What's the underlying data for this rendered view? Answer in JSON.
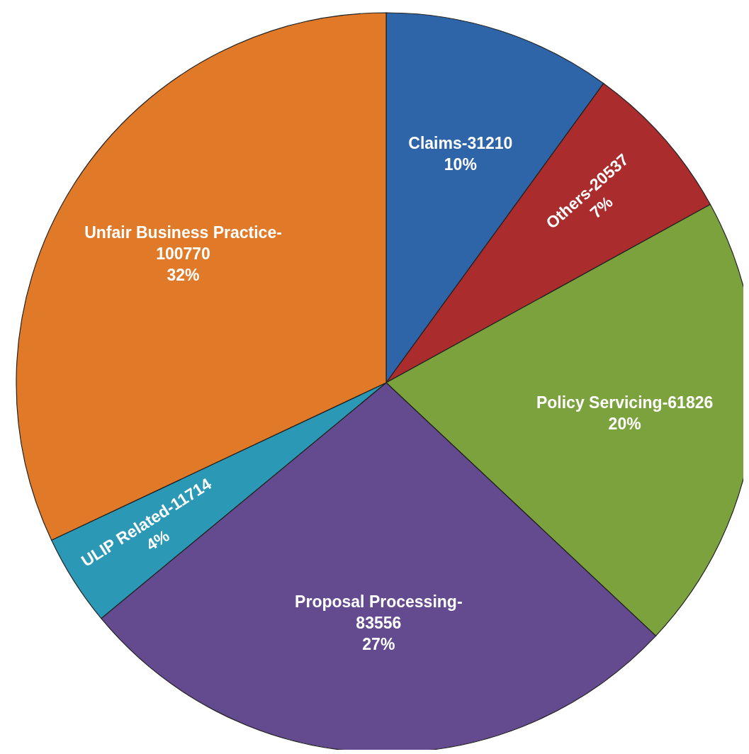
{
  "chart_data": {
    "type": "pie",
    "categories": [
      "Claims-31210",
      "Others-20537",
      "Policy Servicing-61826",
      "Proposal Processing-83556",
      "ULIP Related-11714",
      "Unfair Business Practice-100770"
    ],
    "values": [
      10,
      7,
      20,
      27,
      4,
      32
    ],
    "colors": [
      "#2e64a8",
      "#aa2c2c",
      "#7ca23e",
      "#644a8e",
      "#2b98b6",
      "#e07a28"
    ],
    "value_labels": [
      "10%",
      "7%",
      "20%",
      "27%",
      "4%",
      "32%"
    ]
  }
}
